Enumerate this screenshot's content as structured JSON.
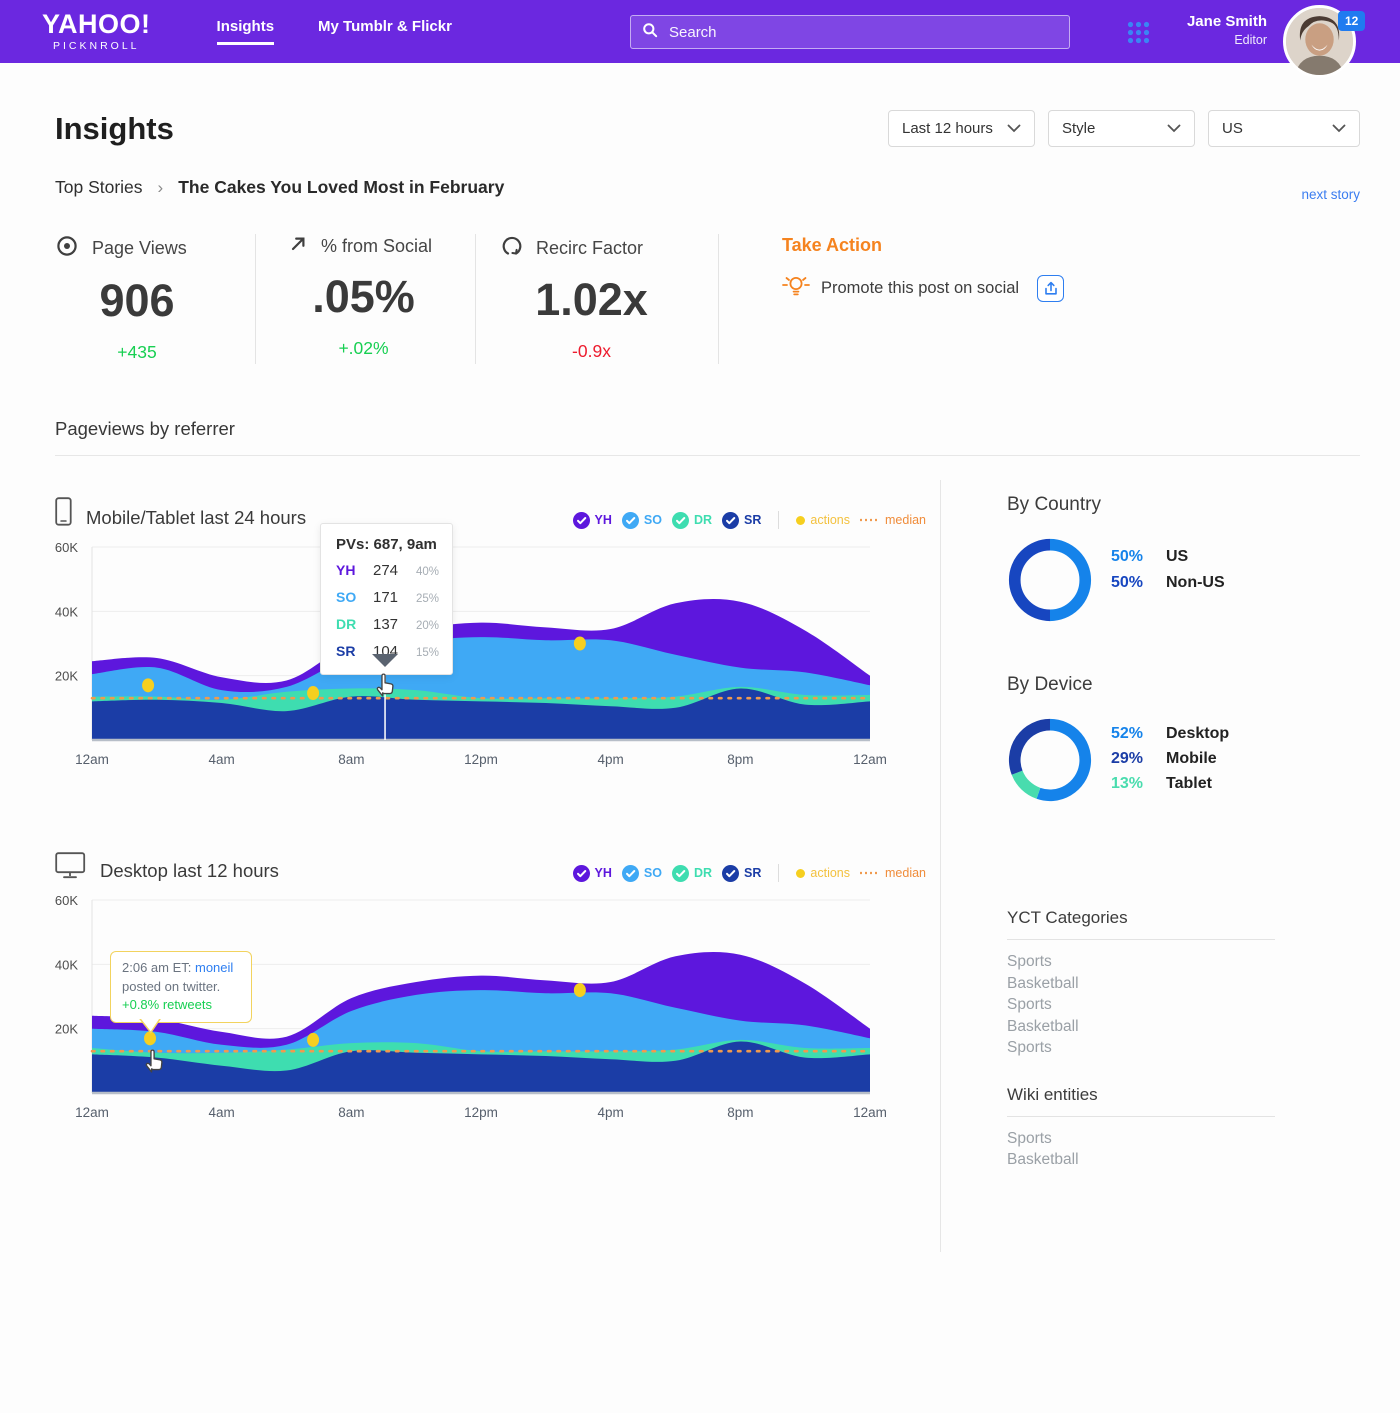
{
  "header": {
    "logo": "YAHOO!",
    "logo_sub": "PICKNROLL",
    "nav": [
      {
        "label": "Insights",
        "active": true
      },
      {
        "label": "My Tumblr & Flickr",
        "active": false
      }
    ],
    "search_placeholder": "Search",
    "user_name": "Jane Smith",
    "user_role": "Editor",
    "badge_count": "12"
  },
  "page": {
    "title": "Insights",
    "filters": [
      "Last 12 hours",
      "Style",
      "US"
    ],
    "breadcrumb_root": "Top Stories",
    "breadcrumb_current": "The Cakes You Loved Most in February",
    "next_story": "next story"
  },
  "metrics": [
    {
      "icon": "eye-icon",
      "label": "Page Views",
      "value": "906",
      "delta": "+435",
      "delta_color": "green"
    },
    {
      "icon": "arrow-up-right-icon",
      "label": "% from Social",
      "value": ".05%",
      "delta": "+.02%",
      "delta_color": "green"
    },
    {
      "icon": "recirc-icon",
      "label": "Recirc Factor",
      "value": "1.02x",
      "delta": "-0.9x",
      "delta_color": "red"
    }
  ],
  "take_action": {
    "title": "Take Action",
    "suggestion": "Promote this post on social"
  },
  "section_title": "Pageviews by referrer",
  "legend": {
    "series": [
      {
        "label": "YH",
        "color": "#5d17dd"
      },
      {
        "label": "SO",
        "color": "#3fa9f5"
      },
      {
        "label": "DR",
        "color": "#3eddb0"
      },
      {
        "label": "SR",
        "color": "#1b3da6"
      }
    ],
    "actions_label": "actions",
    "actions_color": "#f3c13e",
    "median_label": "median",
    "median_color": "#f08c3a"
  },
  "chart_data": [
    {
      "type": "area",
      "title": "Mobile/Tablet last 24 hours",
      "icon": "phone-icon",
      "x": [
        0,
        2,
        4,
        6,
        8,
        10,
        12,
        14,
        16,
        18,
        20,
        22,
        24
      ],
      "series": [
        {
          "name": "SR",
          "color": "#1b3da6",
          "values": [
            12,
            12.5,
            11.5,
            9,
            13.5,
            12.5,
            12,
            11.5,
            10.5,
            10,
            16,
            11,
            12
          ]
        },
        {
          "name": "DR",
          "color": "#3eddb0",
          "values": [
            1.5,
            1,
            1,
            6,
            2.5,
            3,
            1,
            1.5,
            2.5,
            3.5,
            0.5,
            3,
            2
          ]
        },
        {
          "name": "SO",
          "color": "#3fa9f5",
          "values": [
            7,
            9,
            3,
            1.5,
            10,
            15,
            19,
            18,
            18,
            13,
            6,
            7,
            3
          ]
        },
        {
          "name": "YH",
          "color": "#5d17dd",
          "values": [
            4,
            3,
            4,
            2,
            4,
            4,
            4.5,
            4,
            3.5,
            16,
            20.5,
            13,
            3
          ]
        }
      ],
      "ylim": [
        0,
        60
      ],
      "yticks": [
        {
          "v": 20,
          "label": "20K"
        },
        {
          "v": 40,
          "label": "40K"
        },
        {
          "v": 60,
          "label": "60K"
        }
      ],
      "xticks": [
        {
          "v": 0,
          "label": "12am"
        },
        {
          "v": 4,
          "label": "4am"
        },
        {
          "v": 8,
          "label": "8am"
        },
        {
          "v": 12,
          "label": "12pm"
        },
        {
          "v": 16,
          "label": "4pm"
        },
        {
          "v": 20,
          "label": "8pm"
        },
        {
          "v": 24,
          "label": "12am"
        }
      ],
      "median": 13,
      "actions": [
        {
          "x": 1.73,
          "y": 17
        },
        {
          "x": 6.82,
          "y": 14.6
        },
        {
          "x": 15.05,
          "y": 30
        }
      ],
      "hover_x": 9.04,
      "tooltip": {
        "title": "PVs: 687, 9am",
        "rows": [
          {
            "label": "YH",
            "value": "274",
            "pct": "40%",
            "color": "#5d17dd"
          },
          {
            "label": "SO",
            "value": "171",
            "pct": "25%",
            "color": "#3fa9f5"
          },
          {
            "label": "DR",
            "value": "137",
            "pct": "20%",
            "color": "#3eddb0"
          },
          {
            "label": "SR",
            "value": "104",
            "pct": "15%",
            "color": "#1b3da6"
          }
        ]
      }
    },
    {
      "type": "area",
      "title": "Desktop last 12 hours",
      "icon": "desktop-icon",
      "x": [
        0,
        2,
        4,
        6,
        8,
        10,
        12,
        14,
        16,
        18,
        20,
        22,
        24
      ],
      "series": [
        {
          "name": "SR",
          "color": "#1b3da6",
          "values": [
            12,
            11,
            8.5,
            7,
            13,
            12.5,
            12,
            11.5,
            10.5,
            10,
            16,
            11,
            12
          ]
        },
        {
          "name": "DR",
          "color": "#3eddb0",
          "values": [
            2,
            1.5,
            4,
            6.5,
            2.5,
            3,
            1,
            1.5,
            2.5,
            3.5,
            0.5,
            3,
            2
          ]
        },
        {
          "name": "SO",
          "color": "#3fa9f5",
          "values": [
            6,
            6.5,
            2.5,
            1.5,
            10,
            15,
            19,
            18,
            18,
            13,
            6,
            7,
            3
          ]
        },
        {
          "name": "YH",
          "color": "#5d17dd",
          "values": [
            4,
            4,
            4,
            2.5,
            4,
            4,
            4.5,
            4,
            3.5,
            16,
            20.5,
            13,
            3
          ]
        }
      ],
      "ylim": [
        0,
        60
      ],
      "yticks": [
        {
          "v": 20,
          "label": "20K"
        },
        {
          "v": 40,
          "label": "40K"
        },
        {
          "v": 60,
          "label": "60K"
        }
      ],
      "xticks": [
        {
          "v": 0,
          "label": "12am"
        },
        {
          "v": 4,
          "label": "4am"
        },
        {
          "v": 8,
          "label": "8am"
        },
        {
          "v": 12,
          "label": "12pm"
        },
        {
          "v": 16,
          "label": "4pm"
        },
        {
          "v": 20,
          "label": "8pm"
        },
        {
          "v": 24,
          "label": "12am"
        }
      ],
      "median": 13,
      "actions": [
        {
          "x": 1.79,
          "y": 17
        },
        {
          "x": 6.82,
          "y": 16.5
        },
        {
          "x": 15.05,
          "y": 32
        }
      ],
      "annotation": {
        "time": "2:06 am ET:",
        "user": "moneil",
        "line2": "posted on twitter.",
        "line3": "+0.8% retweets"
      }
    },
    {
      "type": "pie",
      "title": "By Country",
      "segments": [
        {
          "label": "US",
          "value": 50,
          "color": "#1583ea"
        },
        {
          "label": "Non-US",
          "value": 50,
          "color": "#1746c0"
        }
      ]
    },
    {
      "type": "pie",
      "title": "By Device",
      "segments": [
        {
          "label": "Desktop",
          "value": 52,
          "color": "#1583ea"
        },
        {
          "label": "Tablet",
          "value": 13,
          "color": "#49dcae"
        },
        {
          "label": "Mobile",
          "value": 29,
          "color": "#1b3da6"
        }
      ]
    }
  ],
  "sidebar": {
    "by_country": {
      "title": "By Country",
      "rows": [
        {
          "pct": "50%",
          "label": "US",
          "color": "#1583ea"
        },
        {
          "pct": "50%",
          "label": "Non-US",
          "color": "#1746c0"
        }
      ]
    },
    "by_device": {
      "title": "By Device",
      "rows": [
        {
          "pct": "52%",
          "label": "Desktop",
          "color": "#1583ea"
        },
        {
          "pct": "29%",
          "label": "Mobile",
          "color": "#1b3da6"
        },
        {
          "pct": "13%",
          "label": "Tablet",
          "color": "#49dcae"
        }
      ]
    },
    "yct": {
      "title": "YCT Categories",
      "items": [
        "Sports",
        "Basketball",
        "Sports",
        "Basketball",
        "Sports"
      ]
    },
    "wiki": {
      "title": "Wiki entities",
      "items": [
        "Sports",
        "Basketball"
      ]
    }
  }
}
